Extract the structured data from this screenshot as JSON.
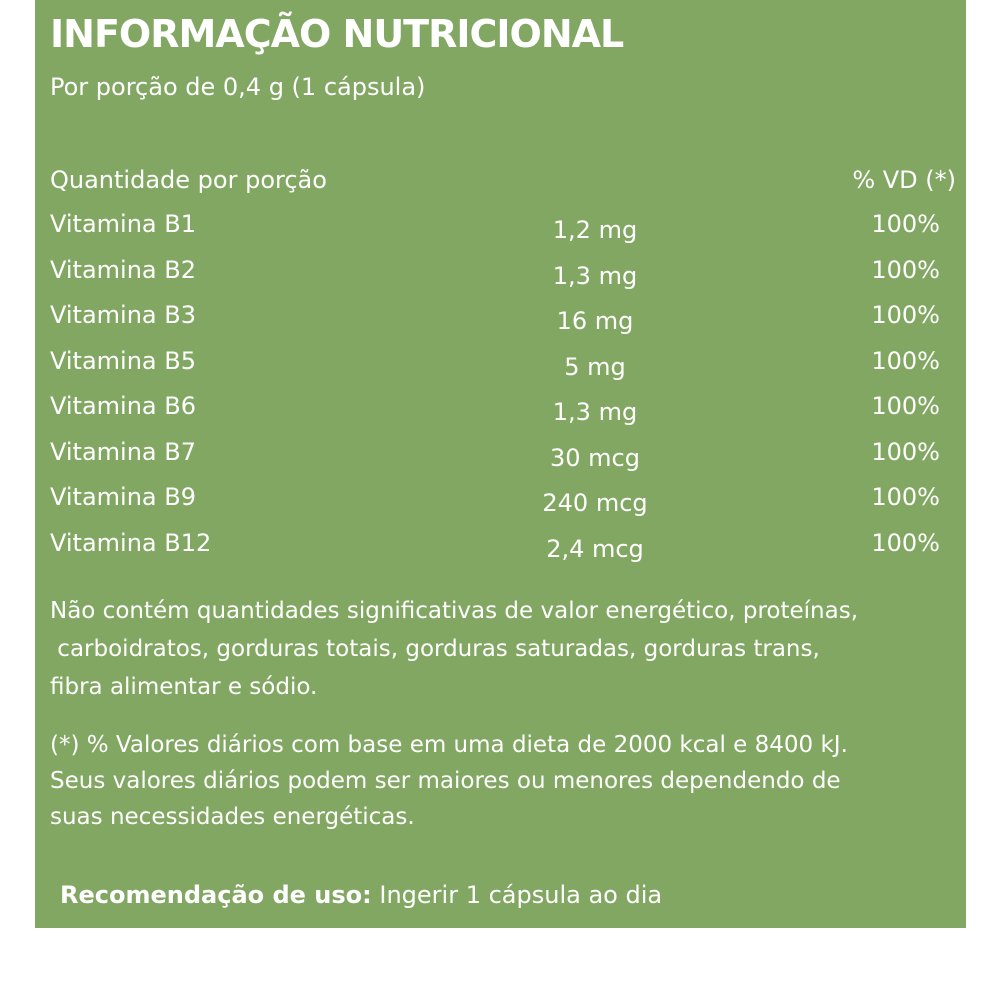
{
  "title": "INFORMAÇÃO NUTRICIONAL",
  "serving": "Por porção de 0,4 g (1 cápsula)",
  "table": {
    "header_name": "Quantidade por porção",
    "header_vd": "% VD (*)",
    "rows": [
      {
        "name": "Vitamina B1",
        "amount": "1,2 mg",
        "vd": "100%"
      },
      {
        "name": "Vitamina B2",
        "amount": "1,3 mg",
        "vd": "100%"
      },
      {
        "name": "Vitamina B3",
        "amount": "16 mg",
        "vd": "100%"
      },
      {
        "name": "Vitamina B5",
        "amount": "5 mg",
        "vd": "100%"
      },
      {
        "name": "Vitamina B6",
        "amount": "1,3 mg",
        "vd": "100%"
      },
      {
        "name": "Vitamina B7",
        "amount": "30 mcg",
        "vd": "100%"
      },
      {
        "name": "Vitamina B9",
        "amount": "240 mcg",
        "vd": "100%"
      },
      {
        "name": "Vitamina B12",
        "amount": "2,4 mcg",
        "vd": "100%"
      }
    ]
  },
  "note": {
    "line1": "Não contém quantidades significativas de valor energético, proteínas,",
    "line2": " carboidratos, gorduras totais, gorduras saturadas, gorduras trans,",
    "line3": "fibra alimentar e sódio."
  },
  "footnote": {
    "line1": "(*) % Valores diários com base em uma dieta de 2000 kcal e 8400 kJ.",
    "line2": "Seus valores diários podem ser maiores ou menores dependendo de",
    "line3": "suas necessidades energéticas."
  },
  "recommendation": {
    "label": "Recomendação de uso:",
    "text": " Ingerir 1 cápsula ao dia"
  },
  "colors": {
    "panel_background": "#82a762",
    "text": "#ffffff"
  }
}
